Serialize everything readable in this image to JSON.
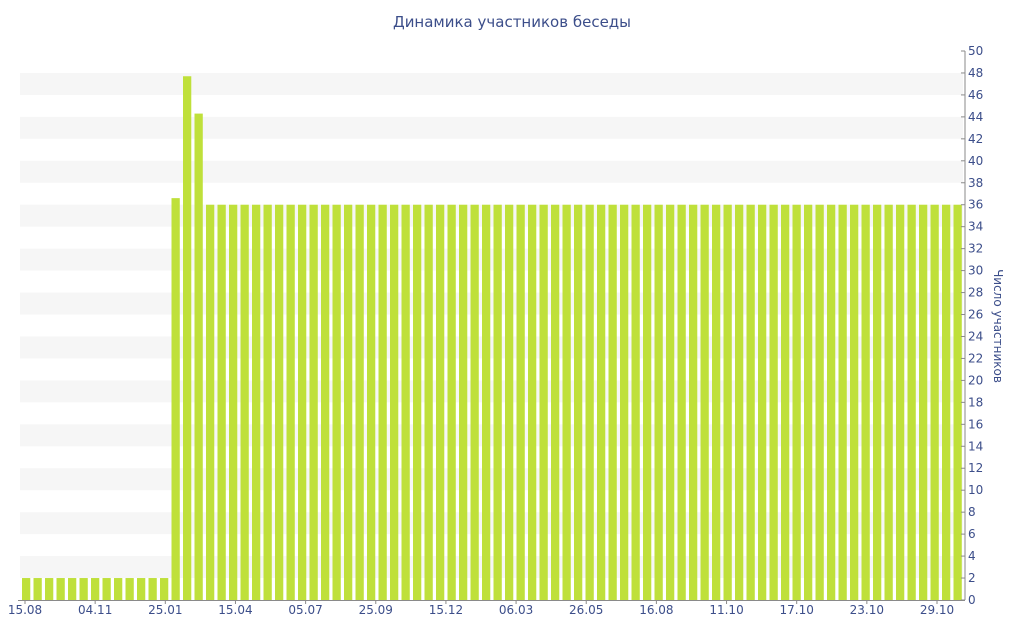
{
  "chart_data": {
    "type": "bar",
    "title": "Динамика участников беседы",
    "xlabel": "",
    "ylabel": "Число участников",
    "ylim": [
      0,
      50
    ],
    "y_ticks": [
      0,
      2,
      4,
      6,
      8,
      10,
      12,
      14,
      16,
      18,
      20,
      22,
      24,
      26,
      28,
      30,
      32,
      34,
      36,
      38,
      40,
      42,
      44,
      46,
      48,
      50
    ],
    "x_tick_labels": [
      "15.08",
      "04.11",
      "25.01",
      "15.04",
      "05.07",
      "25.09",
      "15.12",
      "06.03",
      "26.05",
      "16.08",
      "11.10",
      "17.10",
      "23.10",
      "29.10"
    ],
    "grid": "alternating horizontal bands",
    "bar_color": "#bfe03a",
    "band_color": "#f6f6f6",
    "text_color": "#3c4e8a",
    "axis_position": "right",
    "series": [
      {
        "values": [
          2,
          2,
          2,
          2,
          2,
          2,
          2,
          2,
          2,
          2,
          2,
          2,
          2,
          36.6,
          47.7,
          44.3,
          36,
          36,
          36,
          36,
          36,
          36,
          36,
          36,
          36,
          36,
          36,
          36,
          36,
          36,
          36,
          36,
          36,
          36,
          36,
          36,
          36,
          36,
          36,
          36,
          36,
          36,
          36,
          36,
          36,
          36,
          36,
          36,
          36,
          36,
          36,
          36,
          36,
          36,
          36,
          36,
          36,
          36,
          36,
          36,
          36,
          36,
          36,
          36,
          36,
          36,
          36,
          36,
          36,
          36,
          36,
          36,
          36,
          36,
          36,
          36,
          36,
          36,
          36,
          36,
          36,
          36
        ]
      }
    ]
  }
}
